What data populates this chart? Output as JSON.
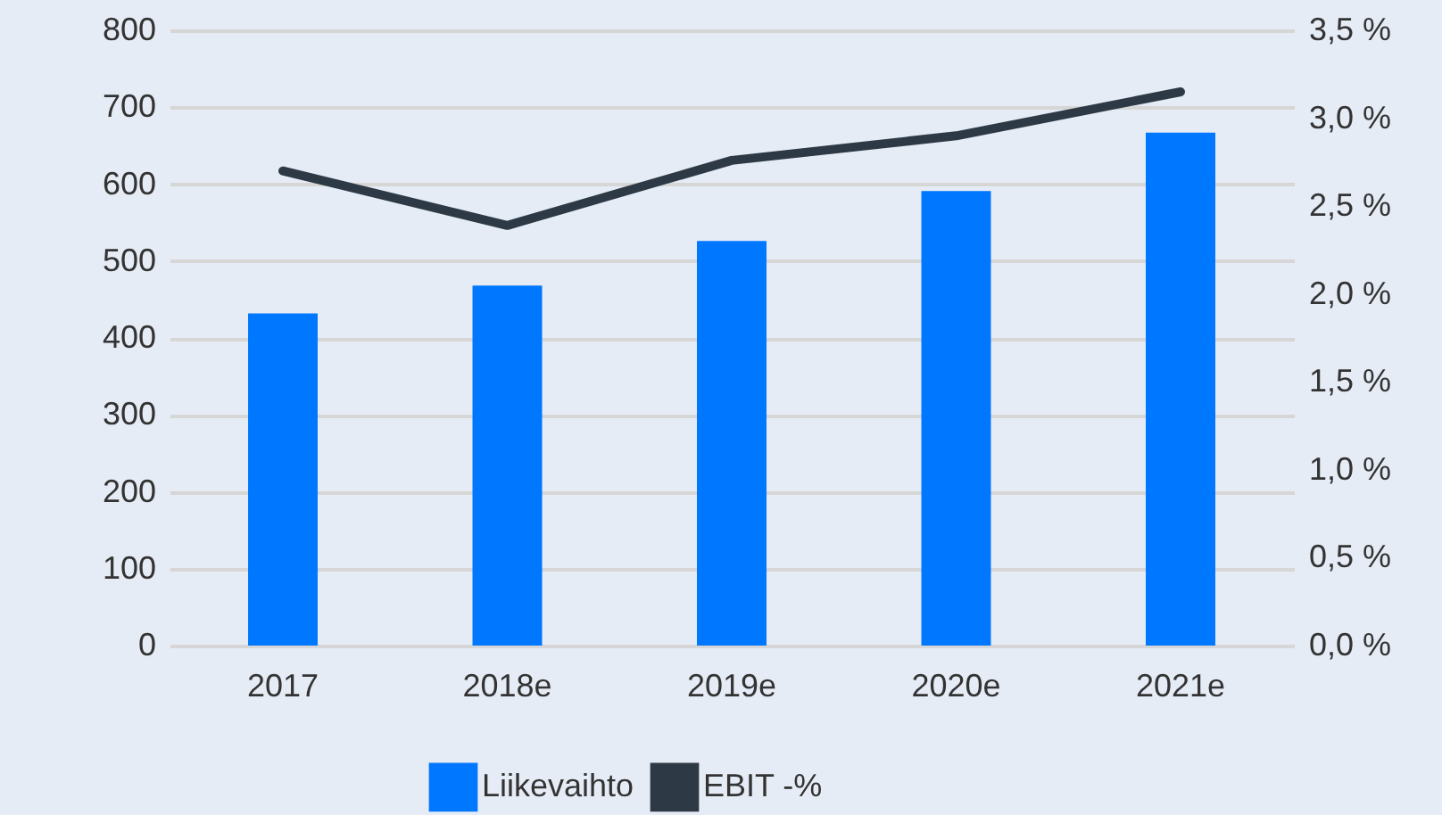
{
  "chart_data": {
    "type": "bar",
    "categories": [
      "2017",
      "2018e",
      "2019e",
      "2020e",
      "2021e"
    ],
    "series": [
      {
        "name": "Liikevaihto",
        "color": "#0077ff",
        "values": [
          432,
          468,
          526,
          591,
          667
        ]
      },
      {
        "name": "EBIT -%",
        "type": "line",
        "axis": "y2",
        "color": "#2d3a45",
        "values": [
          2.7,
          2.39,
          2.76,
          2.9,
          3.15
        ]
      }
    ],
    "ylim": [
      0,
      800
    ],
    "yticks": [
      0,
      100,
      200,
      300,
      400,
      500,
      600,
      700,
      800
    ],
    "y2lim": [
      0,
      3.5
    ],
    "y2ticks": [
      {
        "value": 0,
        "label": "0,0 %"
      },
      {
        "value": 0.5,
        "label": "0,5 %"
      },
      {
        "value": 1,
        "label": "1,0 %"
      },
      {
        "value": 1.5,
        "label": "1,5 %"
      },
      {
        "value": 2,
        "label": "2,0 %"
      },
      {
        "value": 2.5,
        "label": "2,5 %"
      },
      {
        "value": 3,
        "label": "3,0 %"
      },
      {
        "value": 3.5,
        "label": "3,5 %"
      }
    ],
    "grid": "y",
    "legend": "bottom",
    "marker": "none",
    "line_style": "solid"
  }
}
